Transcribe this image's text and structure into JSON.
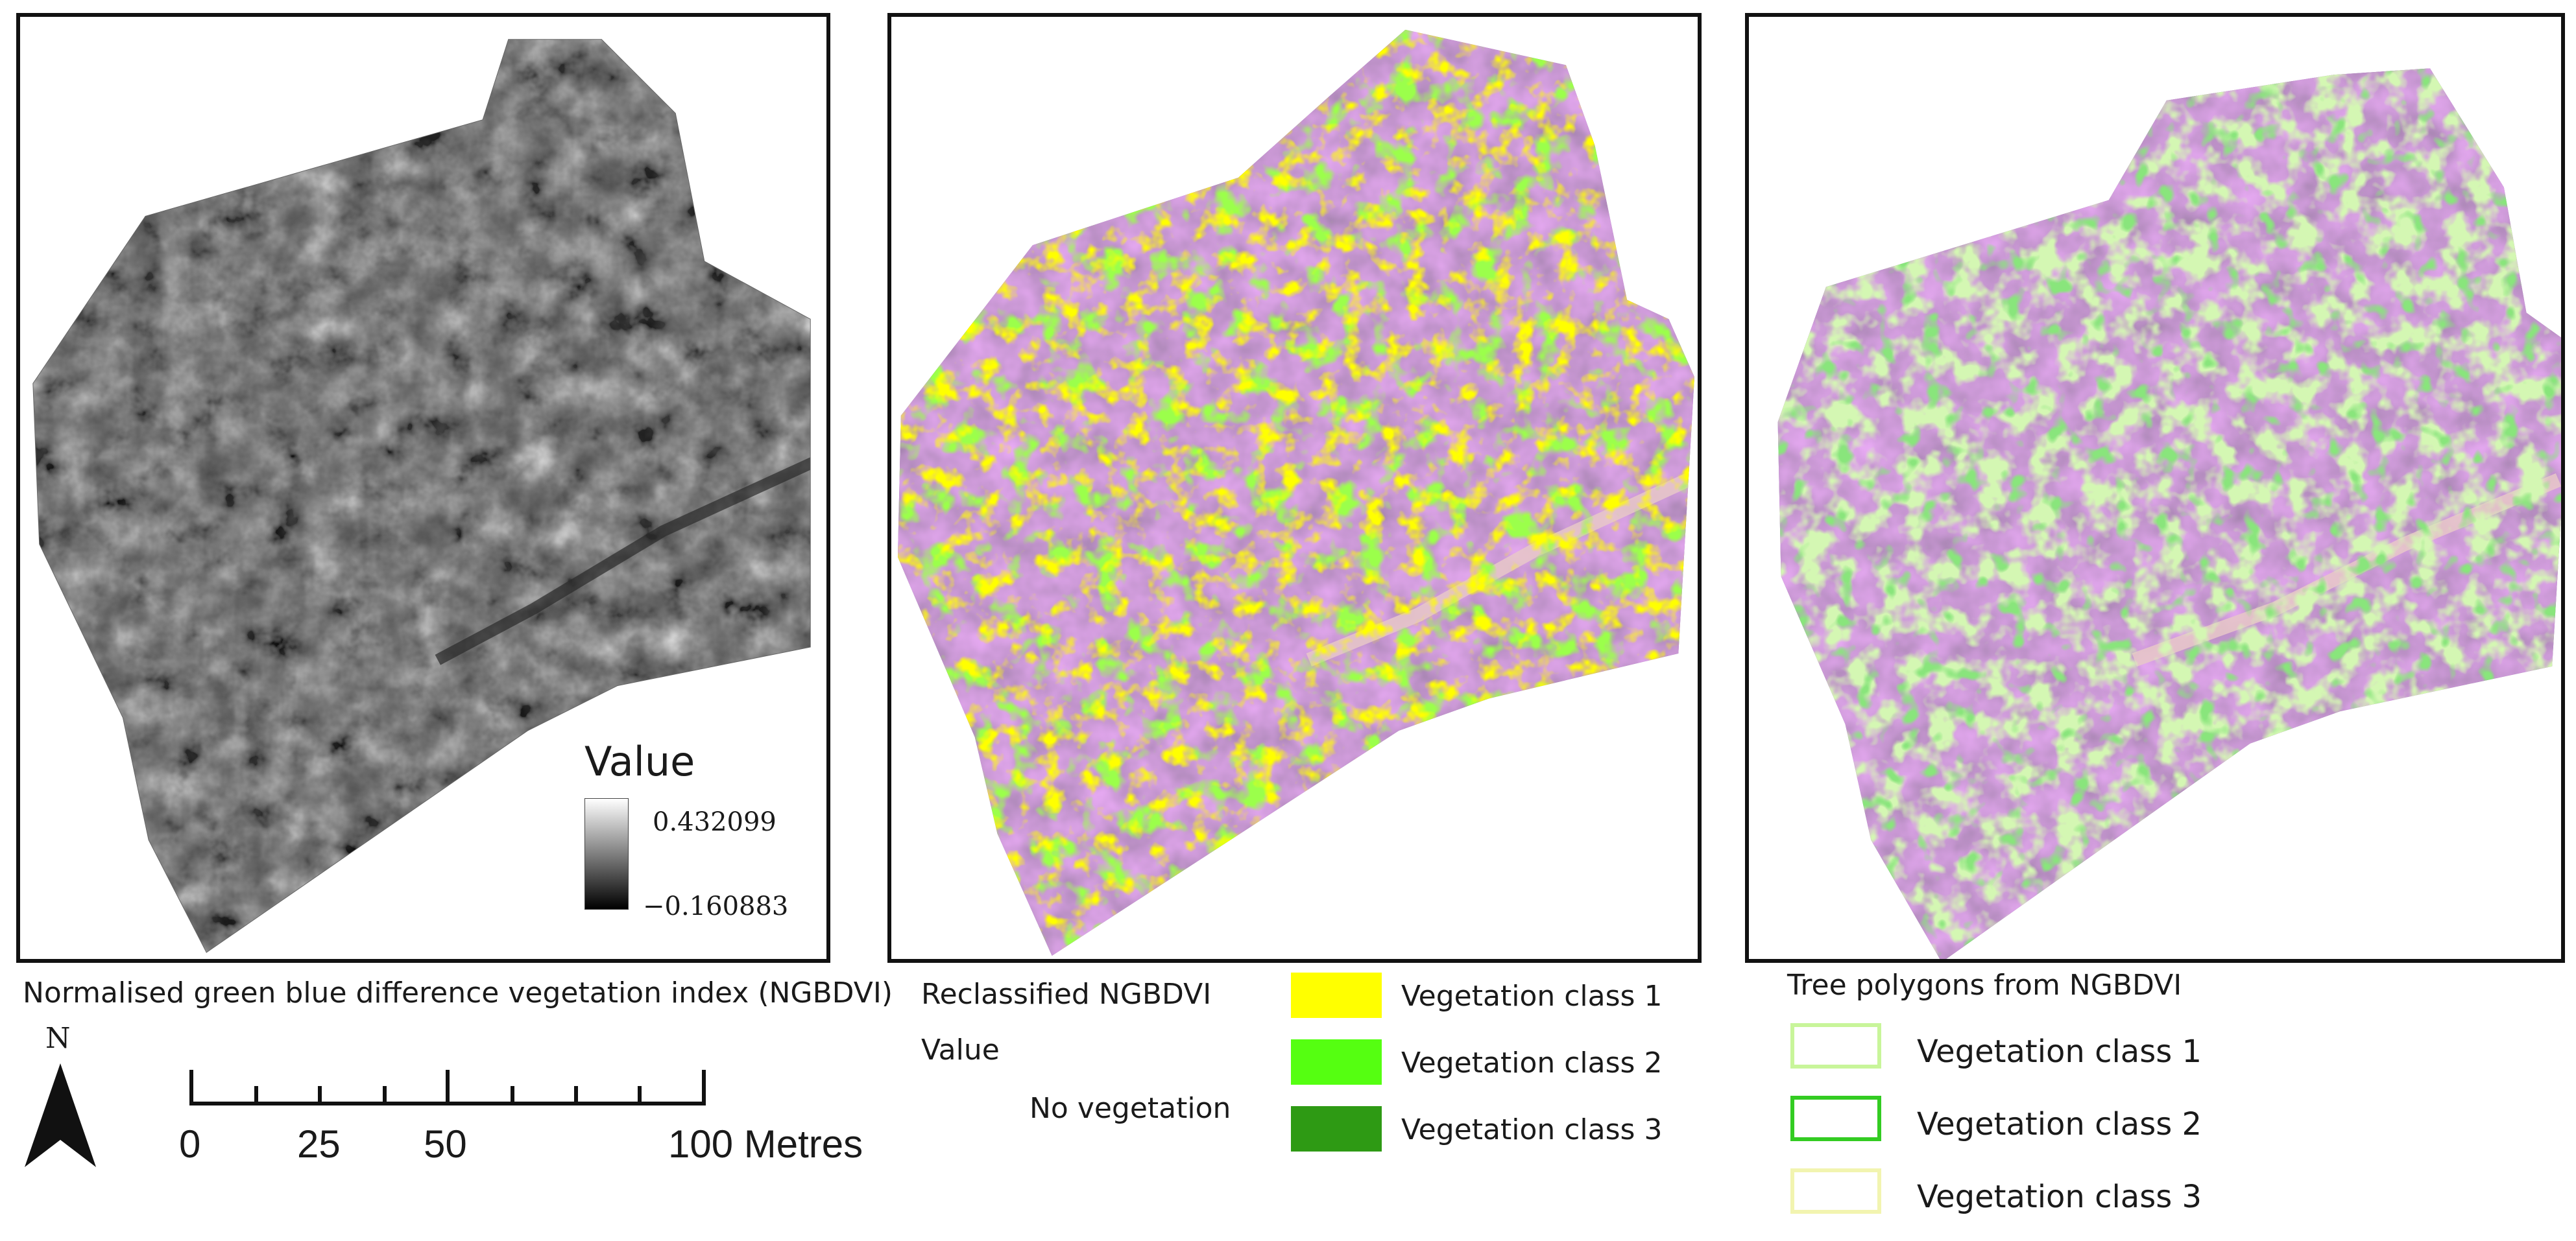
{
  "panel1": {
    "caption": "Normalised green blue difference vegetation index (NGBDVI)",
    "legend": {
      "title": "Value",
      "max": "0.432099",
      "min": "−0.160883"
    }
  },
  "panel2": {
    "title": "Reclassified NGBDVI",
    "value_label": "Value",
    "no_veg_label": "No vegetation",
    "classes": [
      {
        "label": "Vegetation class 1",
        "color": "#ffff00"
      },
      {
        "label": "Vegetation class 2",
        "color": "#55ff11"
      },
      {
        "label": "Vegetation class 3",
        "color": "#2e9a14"
      }
    ]
  },
  "panel3": {
    "title": "Tree polygons from NGBDVI",
    "classes": [
      {
        "label": "Vegetation class 1",
        "outline": "#c8f59a"
      },
      {
        "label": "Vegetation class 2",
        "outline": "#33cc22"
      },
      {
        "label": "Vegetation class 3",
        "outline": "#f2f4b0"
      }
    ]
  },
  "north_arrow": {
    "letter": "N"
  },
  "scale_bar": {
    "labels": [
      "0",
      "25",
      "50",
      "100 Metres"
    ]
  },
  "colors": {
    "frame": "#111111",
    "veg1": "#ffff00",
    "veg2": "#55ff11",
    "veg3": "#2e9a14",
    "poly1": "#c8f59a"
  }
}
